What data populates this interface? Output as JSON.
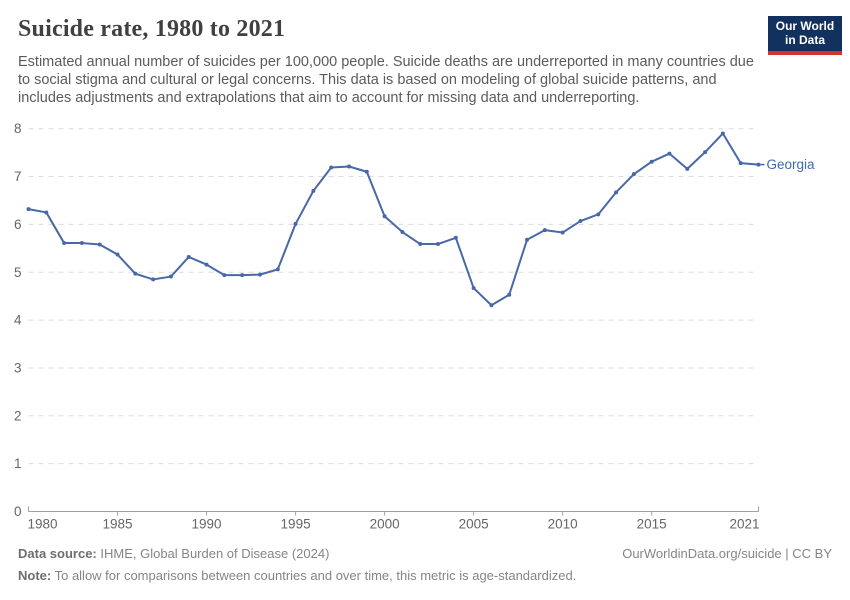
{
  "header": {
    "title": "Suicide rate, 1980 to 2021",
    "logo": {
      "line1": "Our World",
      "line2": "in Data",
      "bg_color": "#13315f",
      "strip_color": "#d1352b"
    }
  },
  "subtitle": "Estimated annual number of suicides per 100,000 people. Suicide deaths are underreported in many countries due to social stigma and cultural or legal concerns. This data is based on modeling of global suicide patterns, and includes adjustments and extrapolations that aim to account for missing data and underreporting.",
  "chart_data": {
    "type": "line",
    "title": "Suicide rate, 1980 to 2021",
    "xlabel": "",
    "ylabel": "",
    "xlim": [
      1980,
      2021
    ],
    "ylim": [
      0,
      8
    ],
    "x_ticks": [
      1980,
      1985,
      1990,
      1995,
      2000,
      2005,
      2010,
      2015,
      2021
    ],
    "y_ticks": [
      0,
      1,
      2,
      3,
      4,
      5,
      6,
      7,
      8
    ],
    "grid": "horizontal-dashed",
    "legend_position": "end-of-line-label",
    "line_color": "#4868a7",
    "label_color": "#3d6bb3",
    "entity_label": "Georgia",
    "series": [
      {
        "name": "Georgia",
        "x": [
          1980,
          1981,
          1982,
          1983,
          1984,
          1985,
          1986,
          1987,
          1988,
          1989,
          1990,
          1991,
          1992,
          1993,
          1994,
          1995,
          1996,
          1997,
          1998,
          1999,
          2000,
          2001,
          2002,
          2003,
          2004,
          2005,
          2006,
          2007,
          2008,
          2009,
          2010,
          2011,
          2012,
          2013,
          2014,
          2015,
          2016,
          2017,
          2018,
          2019,
          2020,
          2021
        ],
        "values": [
          6.32,
          6.25,
          5.61,
          5.61,
          5.58,
          5.37,
          4.97,
          4.85,
          4.91,
          5.32,
          5.16,
          4.94,
          4.94,
          4.95,
          5.06,
          6.01,
          6.7,
          7.19,
          7.21,
          7.1,
          6.17,
          5.84,
          5.59,
          5.59,
          5.72,
          4.67,
          4.31,
          4.53,
          5.68,
          5.88,
          5.83,
          6.07,
          6.21,
          6.67,
          7.05,
          7.31,
          7.48,
          7.16,
          7.51,
          7.9,
          7.28,
          7.25
        ]
      }
    ]
  },
  "footer": {
    "source_label": "Data source:",
    "source_text": " IHME, Global Burden of Disease (2024)",
    "rights": "OurWorldinData.org/suicide | CC BY",
    "note_label": "Note:",
    "note_text": " To allow for comparisons between countries and over time, this metric is age-standardized."
  }
}
